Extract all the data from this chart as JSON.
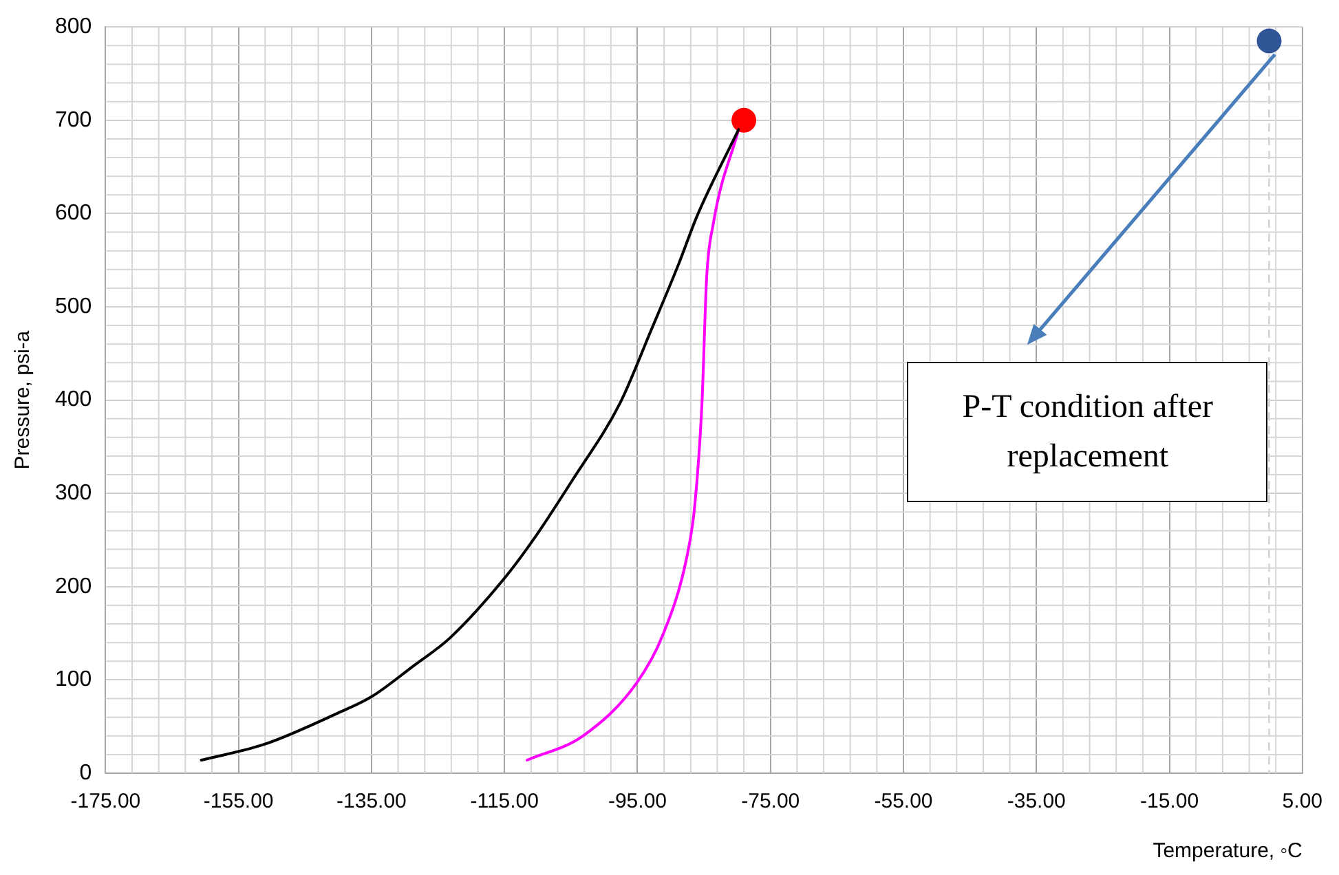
{
  "chart_data": {
    "type": "line",
    "xlabel": "Temperature, ◦C",
    "ylabel": "Pressure, psi-a",
    "xlim": [
      -175,
      5
    ],
    "ylim": [
      0,
      800
    ],
    "xticks": [
      {
        "value": -175,
        "label": "-175.00"
      },
      {
        "value": -155,
        "label": "-155.00"
      },
      {
        "value": -135,
        "label": "-135.00"
      },
      {
        "value": -115,
        "label": "-115.00"
      },
      {
        "value": -95,
        "label": "-95.00"
      },
      {
        "value": -75,
        "label": "-75.00"
      },
      {
        "value": -55,
        "label": "-55.00"
      },
      {
        "value": -35,
        "label": "-35.00"
      },
      {
        "value": -15,
        "label": "-15.00"
      },
      {
        "value": 5,
        "label": "5.00"
      }
    ],
    "yticks": [
      0,
      100,
      200,
      300,
      400,
      500,
      600,
      700,
      800
    ],
    "grid": true,
    "legend": false,
    "series": [
      {
        "color": "#000000",
        "marker": "none",
        "x": [
          -160.6,
          -151.1,
          -139.9,
          -135,
          -128.7,
          -123.2,
          -115,
          -110.4,
          -104.8,
          -97.6,
          -93,
          -88.8,
          -86,
          -79.8
        ],
        "values": [
          14,
          31,
          65,
          82,
          115,
          145,
          209,
          253,
          314,
          397,
          474,
          546,
          598,
          690
        ]
      },
      {
        "color": "#ff00ff",
        "marker": "none",
        "x": [
          -111.6,
          -103.2,
          -95.2,
          -91.2,
          -87.6,
          -86.4,
          -85.3,
          -84.6,
          -83.6,
          -79.8
        ],
        "values": [
          14,
          40,
          96,
          148,
          231,
          286,
          397,
          531,
          589,
          690
        ]
      },
      {
        "type": "scatter",
        "color": "#ff0000",
        "marker": "circle",
        "x": [
          -79
        ],
        "values": [
          700
        ]
      },
      {
        "type": "scatter",
        "color": "#2f5597",
        "marker": "circle",
        "x": [
          0
        ],
        "values": [
          785
        ]
      }
    ],
    "ref_lines": [
      {
        "axis": "x",
        "value": 0,
        "color": "#d9d9d9",
        "line_style": "dashed"
      }
    ],
    "annotations": [
      "P-T condition after replacement"
    ]
  }
}
